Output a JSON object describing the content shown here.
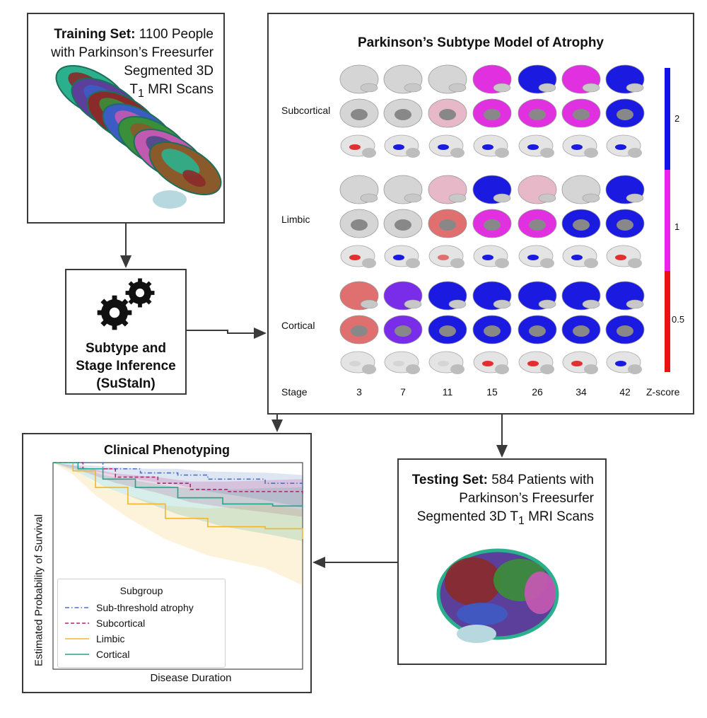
{
  "training": {
    "title": "Training Set:",
    "text": "1100 People with Parkinson’s Freesurfer Segmented 3D",
    "t1_base": "T",
    "t1_sub": "1",
    "t1_tail": "MRI Scans"
  },
  "inference": {
    "line1": "Subtype and",
    "line2": "Stage Inference",
    "line3": "(SuStaIn)",
    "icon": "gears-icon"
  },
  "model": {
    "title": "Parkinson’s Subtype Model of Atrophy",
    "rows": [
      "Subcortical",
      "Limbic",
      "Cortical"
    ],
    "stage_label": "Stage",
    "stages": [
      "3",
      "7",
      "11",
      "15",
      "26",
      "34",
      "42"
    ],
    "colorbar": {
      "label": "Z-score",
      "ticks": [
        "2",
        "1",
        "0.5"
      ],
      "colors": [
        "#1212e8",
        "#ee22ee",
        "#ee1111"
      ]
    }
  },
  "phenotyping": {
    "title": "Clinical Phenotyping",
    "ylabel": "Estimated Probability of Survival",
    "xlabel": "Disease Duration",
    "legend_title": "Subgroup",
    "series": [
      {
        "name": "Sub-threshold atrophy",
        "color": "#4a72c4",
        "dash": "6,3,1.5,3"
      },
      {
        "name": "Subcortical",
        "color": "#b3246e",
        "dash": "5,3"
      },
      {
        "name": "Limbic",
        "color": "#f2b630",
        "dash": ""
      },
      {
        "name": "Cortical",
        "color": "#1fa68a",
        "dash": ""
      }
    ]
  },
  "testing": {
    "title": "Testing Set:",
    "text1": "584 Patients with Parkinson’s Freesurfer Segmented 3D",
    "t1_base": "T",
    "t1_sub": "1",
    "t1_tail": "MRI Scans"
  },
  "brain_colors": [
    "#2bb08e",
    "#5b3f9a",
    "#8a2a2a",
    "#3d5bc4",
    "#3a8f3a",
    "#c259b0",
    "#8a5a2a",
    "#4a4a8a"
  ]
}
